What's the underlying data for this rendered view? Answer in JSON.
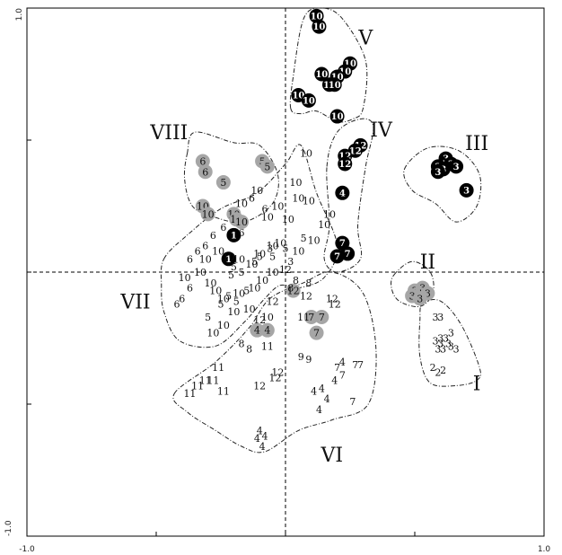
{
  "chart_data": {
    "type": "scatter",
    "title": "",
    "xlabel": "",
    "ylabel": "",
    "xlim": [
      -1.0,
      1.0
    ],
    "ylim": [
      -1.0,
      1.0
    ],
    "x_tick_labels": [
      {
        "value": -1.0,
        "label": "-1.0"
      },
      {
        "value": 1.0,
        "label": "1.0"
      }
    ],
    "y_tick_labels": [
      {
        "value": 1.0,
        "label": "1.0"
      },
      {
        "value": -1.0,
        "label": "-1.0"
      }
    ],
    "reference_lines": {
      "x": 0,
      "y": 0,
      "style": "dashed"
    },
    "group_labels": [
      {
        "name": "I",
        "x": 0.74,
        "y": -0.42
      },
      {
        "name": "II",
        "x": 0.55,
        "y": 0.04
      },
      {
        "name": "III",
        "x": 0.74,
        "y": 0.49
      },
      {
        "name": "IV",
        "x": 0.37,
        "y": 0.54
      },
      {
        "name": "V",
        "x": 0.31,
        "y": 0.89
      },
      {
        "name": "VI",
        "x": 0.18,
        "y": -0.69
      },
      {
        "name": "VII",
        "x": -0.58,
        "y": -0.11
      },
      {
        "name": "VIII",
        "x": -0.45,
        "y": 0.53
      }
    ],
    "group_outlines": [
      {
        "name": "I",
        "points": [
          [
            0.53,
            -0.12
          ],
          [
            0.6,
            -0.11
          ],
          [
            0.68,
            -0.2
          ],
          [
            0.75,
            -0.36
          ],
          [
            0.74,
            -0.41
          ],
          [
            0.66,
            -0.43
          ],
          [
            0.56,
            -0.42
          ],
          [
            0.52,
            -0.32
          ],
          [
            0.52,
            -0.18
          ]
        ]
      },
      {
        "name": "II",
        "points": [
          [
            0.42,
            -0.01
          ],
          [
            0.49,
            0.04
          ],
          [
            0.56,
            0.0
          ],
          [
            0.57,
            -0.08
          ],
          [
            0.52,
            -0.13
          ],
          [
            0.44,
            -0.11
          ],
          [
            0.41,
            -0.06
          ]
        ]
      },
      {
        "name": "III",
        "points": [
          [
            0.46,
            0.39
          ],
          [
            0.55,
            0.47
          ],
          [
            0.67,
            0.46
          ],
          [
            0.75,
            0.37
          ],
          [
            0.74,
            0.25
          ],
          [
            0.66,
            0.19
          ],
          [
            0.58,
            0.26
          ],
          [
            0.49,
            0.31
          ]
        ]
      },
      {
        "name": "IV",
        "points": [
          [
            0.16,
            0.4
          ],
          [
            0.2,
            0.53
          ],
          [
            0.29,
            0.58
          ],
          [
            0.34,
            0.55
          ],
          [
            0.31,
            0.4
          ],
          [
            0.28,
            0.18
          ],
          [
            0.29,
            0.05
          ],
          [
            0.2,
            0.0
          ],
          [
            0.15,
            0.05
          ],
          [
            0.17,
            0.18
          ]
        ]
      },
      {
        "name": "V",
        "points": [
          [
            0.02,
            0.62
          ],
          [
            0.03,
            0.74
          ],
          [
            0.07,
            0.96
          ],
          [
            0.14,
            1.0
          ],
          [
            0.22,
            0.96
          ],
          [
            0.31,
            0.8
          ],
          [
            0.3,
            0.62
          ],
          [
            0.26,
            0.58
          ],
          [
            0.2,
            0.57
          ],
          [
            0.12,
            0.61
          ],
          [
            0.06,
            0.6
          ]
        ]
      },
      {
        "name": "VI",
        "points": [
          [
            -0.43,
            -0.46
          ],
          [
            -0.27,
            -0.34
          ],
          [
            -0.14,
            -0.21
          ],
          [
            -0.06,
            -0.1
          ],
          [
            0.07,
            -0.04
          ],
          [
            0.18,
            0.0
          ],
          [
            0.3,
            -0.08
          ],
          [
            0.35,
            -0.29
          ],
          [
            0.32,
            -0.5
          ],
          [
            0.18,
            -0.56
          ],
          [
            0.05,
            -0.6
          ],
          [
            -0.08,
            -0.68
          ],
          [
            -0.17,
            -0.66
          ],
          [
            -0.27,
            -0.6
          ],
          [
            -0.38,
            -0.53
          ]
        ]
      },
      {
        "name": "VII",
        "points": [
          [
            -0.47,
            0.05
          ],
          [
            -0.38,
            0.14
          ],
          [
            -0.25,
            0.24
          ],
          [
            -0.11,
            0.3
          ],
          [
            0.0,
            0.41
          ],
          [
            0.06,
            0.48
          ],
          [
            0.12,
            0.3
          ],
          [
            0.2,
            0.1
          ],
          [
            0.15,
            -0.02
          ],
          [
            0.05,
            -0.06
          ],
          [
            -0.02,
            -0.05
          ],
          [
            -0.08,
            -0.1
          ],
          [
            -0.16,
            -0.19
          ],
          [
            -0.27,
            -0.28
          ],
          [
            -0.41,
            -0.26
          ],
          [
            -0.47,
            -0.15
          ],
          [
            -0.48,
            -0.05
          ]
        ]
      },
      {
        "name": "VIII",
        "points": [
          [
            -0.38,
            0.45
          ],
          [
            -0.35,
            0.53
          ],
          [
            -0.2,
            0.49
          ],
          [
            -0.1,
            0.48
          ],
          [
            -0.03,
            0.37
          ],
          [
            -0.05,
            0.26
          ],
          [
            -0.16,
            0.19
          ],
          [
            -0.28,
            0.21
          ],
          [
            -0.36,
            0.25
          ],
          [
            -0.39,
            0.35
          ]
        ]
      }
    ],
    "points_plain": [
      {
        "x": 0.58,
        "y": -0.17,
        "label": "3"
      },
      {
        "x": 0.6,
        "y": -0.17,
        "label": "3"
      },
      {
        "x": 0.58,
        "y": -0.26,
        "label": "3"
      },
      {
        "x": 0.6,
        "y": -0.25,
        "label": "3"
      },
      {
        "x": 0.62,
        "y": -0.25,
        "label": "3"
      },
      {
        "x": 0.64,
        "y": -0.23,
        "label": "3"
      },
      {
        "x": 0.59,
        "y": -0.29,
        "label": "3"
      },
      {
        "x": 0.61,
        "y": -0.29,
        "label": "3"
      },
      {
        "x": 0.64,
        "y": -0.28,
        "label": "3"
      },
      {
        "x": 0.66,
        "y": -0.29,
        "label": "3"
      },
      {
        "x": 0.6,
        "y": -0.27,
        "label": "3"
      },
      {
        "x": 0.63,
        "y": -0.27,
        "label": "3"
      },
      {
        "x": 0.57,
        "y": -0.36,
        "label": "2"
      },
      {
        "x": 0.59,
        "y": -0.38,
        "label": "2"
      },
      {
        "x": 0.61,
        "y": -0.37,
        "label": "2"
      },
      {
        "x": 0.08,
        "y": 0.45,
        "label": "10"
      },
      {
        "x": 0.04,
        "y": 0.34,
        "label": "10"
      },
      {
        "x": -0.03,
        "y": 0.25,
        "label": "10"
      },
      {
        "x": 0.05,
        "y": 0.28,
        "label": "10"
      },
      {
        "x": 0.09,
        "y": 0.27,
        "label": "10"
      },
      {
        "x": 0.17,
        "y": 0.22,
        "label": "10"
      },
      {
        "x": 0.15,
        "y": 0.18,
        "label": "10"
      },
      {
        "x": 0.11,
        "y": 0.12,
        "label": "10"
      },
      {
        "x": 0.01,
        "y": 0.2,
        "label": "10"
      },
      {
        "x": 0.05,
        "y": 0.08,
        "label": "10"
      },
      {
        "x": -0.02,
        "y": 0.11,
        "label": "10"
      },
      {
        "x": -0.05,
        "y": 0.1,
        "label": "10"
      },
      {
        "x": -0.1,
        "y": 0.07,
        "label": "10"
      },
      {
        "x": -0.13,
        "y": 0.03,
        "label": "10"
      },
      {
        "x": -0.18,
        "y": 0.05,
        "label": "10"
      },
      {
        "x": -0.22,
        "y": 0.06,
        "label": "10"
      },
      {
        "x": -0.26,
        "y": 0.08,
        "label": "10"
      },
      {
        "x": -0.31,
        "y": 0.05,
        "label": "10"
      },
      {
        "x": -0.33,
        "y": 0.0,
        "label": "10"
      },
      {
        "x": -0.39,
        "y": -0.02,
        "label": "10"
      },
      {
        "x": -0.29,
        "y": -0.04,
        "label": "10"
      },
      {
        "x": -0.27,
        "y": -0.07,
        "label": "10"
      },
      {
        "x": -0.24,
        "y": -0.1,
        "label": "10"
      },
      {
        "x": -0.18,
        "y": -0.08,
        "label": "10"
      },
      {
        "x": -0.12,
        "y": -0.06,
        "label": "10"
      },
      {
        "x": -0.09,
        "y": -0.03,
        "label": "10"
      },
      {
        "x": -0.05,
        "y": 0.0,
        "label": "10"
      },
      {
        "x": -0.14,
        "y": -0.14,
        "label": "10"
      },
      {
        "x": -0.2,
        "y": -0.15,
        "label": "10"
      },
      {
        "x": -0.24,
        "y": -0.2,
        "label": "10"
      },
      {
        "x": -0.28,
        "y": -0.23,
        "label": "10"
      },
      {
        "x": -0.07,
        "y": -0.17,
        "label": "10"
      },
      {
        "x": -0.17,
        "y": 0.26,
        "label": "10"
      },
      {
        "x": -0.11,
        "y": 0.31,
        "label": "10"
      },
      {
        "x": -0.07,
        "y": 0.21,
        "label": "10"
      },
      {
        "x": -0.08,
        "y": 0.24,
        "label": "6"
      },
      {
        "x": -0.13,
        "y": 0.28,
        "label": "6"
      },
      {
        "x": -0.24,
        "y": 0.17,
        "label": "6"
      },
      {
        "x": -0.28,
        "y": 0.14,
        "label": "6"
      },
      {
        "x": -0.31,
        "y": 0.1,
        "label": "6"
      },
      {
        "x": -0.34,
        "y": 0.08,
        "label": "6"
      },
      {
        "x": -0.37,
        "y": 0.05,
        "label": "6"
      },
      {
        "x": -0.37,
        "y": -0.06,
        "label": "6"
      },
      {
        "x": -0.4,
        "y": -0.1,
        "label": "6"
      },
      {
        "x": -0.42,
        "y": -0.12,
        "label": "6"
      },
      {
        "x": -0.17,
        "y": 0.15,
        "label": "6"
      },
      {
        "x": -0.1,
        "y": 0.06,
        "label": "5"
      },
      {
        "x": -0.17,
        "y": 0.0,
        "label": "5"
      },
      {
        "x": -0.21,
        "y": -0.01,
        "label": "5"
      },
      {
        "x": -0.22,
        "y": -0.09,
        "label": "5"
      },
      {
        "x": -0.25,
        "y": -0.12,
        "label": "5"
      },
      {
        "x": -0.19,
        "y": -0.11,
        "label": "5"
      },
      {
        "x": -0.15,
        "y": -0.07,
        "label": "5"
      },
      {
        "x": -0.3,
        "y": -0.17,
        "label": "5"
      },
      {
        "x": -0.2,
        "y": 0.02,
        "label": "5"
      },
      {
        "x": -0.12,
        "y": 0.04,
        "label": "5"
      },
      {
        "x": -0.05,
        "y": 0.06,
        "label": "5"
      },
      {
        "x": 0.0,
        "y": 0.09,
        "label": "5"
      },
      {
        "x": 0.07,
        "y": 0.13,
        "label": "5"
      },
      {
        "x": -0.06,
        "y": 0.09,
        "label": "3"
      },
      {
        "x": 0.02,
        "y": 0.04,
        "label": "3"
      },
      {
        "x": 0.0,
        "y": 0.01,
        "label": "12"
      },
      {
        "x": 0.08,
        "y": -0.09,
        "label": "12"
      },
      {
        "x": 0.18,
        "y": -0.1,
        "label": "12"
      },
      {
        "x": 0.19,
        "y": -0.12,
        "label": "12"
      },
      {
        "x": -0.05,
        "y": -0.11,
        "label": "12"
      },
      {
        "x": -0.1,
        "y": -0.18,
        "label": "12"
      },
      {
        "x": -0.1,
        "y": -0.43,
        "label": "12"
      },
      {
        "x": -0.03,
        "y": -0.38,
        "label": "12"
      },
      {
        "x": -0.04,
        "y": -0.4,
        "label": "12"
      },
      {
        "x": 0.04,
        "y": -0.03,
        "label": "8"
      },
      {
        "x": 0.02,
        "y": -0.06,
        "label": "8"
      },
      {
        "x": -0.17,
        "y": -0.27,
        "label": "8"
      },
      {
        "x": -0.14,
        "y": -0.29,
        "label": "8"
      },
      {
        "x": 0.09,
        "y": -0.04,
        "label": "8"
      },
      {
        "x": 0.07,
        "y": -0.17,
        "label": "11"
      },
      {
        "x": -0.26,
        "y": -0.36,
        "label": "11"
      },
      {
        "x": -0.28,
        "y": -0.41,
        "label": "11"
      },
      {
        "x": -0.31,
        "y": -0.41,
        "label": "11"
      },
      {
        "x": -0.34,
        "y": -0.43,
        "label": "11"
      },
      {
        "x": -0.37,
        "y": -0.46,
        "label": "11"
      },
      {
        "x": -0.24,
        "y": -0.45,
        "label": "11"
      },
      {
        "x": -0.07,
        "y": -0.28,
        "label": "11"
      },
      {
        "x": 0.06,
        "y": -0.32,
        "label": "9"
      },
      {
        "x": 0.09,
        "y": -0.33,
        "label": "9"
      },
      {
        "x": 0.2,
        "y": -0.36,
        "label": "7"
      },
      {
        "x": 0.22,
        "y": -0.39,
        "label": "7"
      },
      {
        "x": 0.27,
        "y": -0.35,
        "label": "7"
      },
      {
        "x": 0.29,
        "y": -0.35,
        "label": "7"
      },
      {
        "x": 0.26,
        "y": -0.49,
        "label": "7"
      },
      {
        "x": 0.11,
        "y": -0.45,
        "label": "4"
      },
      {
        "x": 0.14,
        "y": -0.44,
        "label": "4"
      },
      {
        "x": 0.13,
        "y": -0.52,
        "label": "4"
      },
      {
        "x": 0.22,
        "y": -0.34,
        "label": "4"
      },
      {
        "x": 0.19,
        "y": -0.41,
        "label": "4"
      },
      {
        "x": 0.16,
        "y": -0.48,
        "label": "4"
      },
      {
        "x": -0.1,
        "y": -0.6,
        "label": "4"
      },
      {
        "x": -0.08,
        "y": -0.62,
        "label": "4"
      },
      {
        "x": -0.11,
        "y": -0.63,
        "label": "4"
      },
      {
        "x": -0.09,
        "y": -0.66,
        "label": "4"
      }
    ],
    "points_filled_black": [
      {
        "x": 0.12,
        "y": 0.97,
        "label": "10"
      },
      {
        "x": 0.13,
        "y": 0.93,
        "label": "10"
      },
      {
        "x": 0.25,
        "y": 0.79,
        "label": "10"
      },
      {
        "x": 0.23,
        "y": 0.76,
        "label": "10"
      },
      {
        "x": 0.2,
        "y": 0.74,
        "label": "10"
      },
      {
        "x": 0.14,
        "y": 0.75,
        "label": "10"
      },
      {
        "x": 0.17,
        "y": 0.71,
        "label": "10"
      },
      {
        "x": 0.19,
        "y": 0.71,
        "label": "10"
      },
      {
        "x": 0.05,
        "y": 0.67,
        "label": "10"
      },
      {
        "x": 0.09,
        "y": 0.65,
        "label": "10"
      },
      {
        "x": 0.2,
        "y": 0.59,
        "label": "10"
      },
      {
        "x": 0.29,
        "y": 0.48,
        "label": "12"
      },
      {
        "x": 0.27,
        "y": 0.46,
        "label": "12"
      },
      {
        "x": 0.23,
        "y": 0.44,
        "label": "12"
      },
      {
        "x": 0.23,
        "y": 0.41,
        "label": "12"
      },
      {
        "x": 0.22,
        "y": 0.3,
        "label": "4"
      },
      {
        "x": 0.22,
        "y": 0.11,
        "label": "7"
      },
      {
        "x": 0.24,
        "y": 0.07,
        "label": "7"
      },
      {
        "x": 0.2,
        "y": 0.06,
        "label": "7"
      },
      {
        "x": 0.62,
        "y": 0.43,
        "label": "3"
      },
      {
        "x": 0.64,
        "y": 0.41,
        "label": "3"
      },
      {
        "x": 0.59,
        "y": 0.4,
        "label": "3"
      },
      {
        "x": 0.61,
        "y": 0.39,
        "label": "3"
      },
      {
        "x": 0.66,
        "y": 0.4,
        "label": "3"
      },
      {
        "x": 0.59,
        "y": 0.38,
        "label": "3"
      },
      {
        "x": 0.7,
        "y": 0.31,
        "label": "3"
      },
      {
        "x": -0.2,
        "y": 0.14,
        "label": "1"
      },
      {
        "x": -0.22,
        "y": 0.05,
        "label": "1"
      }
    ],
    "points_filled_gray": [
      {
        "x": -0.32,
        "y": 0.42,
        "label": "6"
      },
      {
        "x": -0.31,
        "y": 0.38,
        "label": "6"
      },
      {
        "x": -0.09,
        "y": 0.42,
        "label": "5"
      },
      {
        "x": -0.07,
        "y": 0.4,
        "label": "5"
      },
      {
        "x": -0.24,
        "y": 0.34,
        "label": "5"
      },
      {
        "x": -0.32,
        "y": 0.25,
        "label": "10"
      },
      {
        "x": -0.3,
        "y": 0.22,
        "label": "10"
      },
      {
        "x": -0.2,
        "y": 0.22,
        "label": "10"
      },
      {
        "x": -0.19,
        "y": 0.2,
        "label": "10"
      },
      {
        "x": -0.17,
        "y": 0.19,
        "label": "10"
      },
      {
        "x": 0.5,
        "y": -0.07,
        "label": "3"
      },
      {
        "x": 0.53,
        "y": -0.06,
        "label": "3"
      },
      {
        "x": 0.55,
        "y": -0.08,
        "label": "3"
      },
      {
        "x": 0.49,
        "y": -0.09,
        "label": "3"
      },
      {
        "x": 0.52,
        "y": -0.1,
        "label": "3"
      },
      {
        "x": 0.03,
        "y": -0.07,
        "label": "12"
      },
      {
        "x": 0.1,
        "y": -0.17,
        "label": "7"
      },
      {
        "x": 0.14,
        "y": -0.17,
        "label": "7"
      },
      {
        "x": 0.12,
        "y": -0.23,
        "label": "7"
      },
      {
        "x": -0.11,
        "y": -0.22,
        "label": "4"
      },
      {
        "x": -0.07,
        "y": -0.22,
        "label": "4"
      }
    ]
  }
}
